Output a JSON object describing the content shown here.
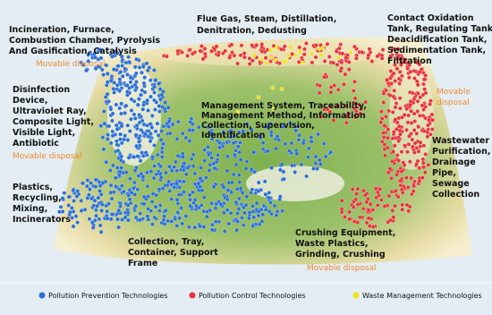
{
  "labels": [
    {
      "lines": [
        "Incineration, Furnace,",
        "Combustion Chamber, Pyrolysis",
        "And Gasification, Catalysis"
      ]
    },
    {
      "lines": [
        "Flue Gas, Steam, Distillation,",
        "Denitration, Dedusting"
      ]
    },
    {
      "lines": [
        "Contact Oxidation",
        "Tank, Regulating Tank,",
        "Deacidification Tank,",
        "Sedimentation Tank,",
        "Filtration"
      ]
    },
    {
      "lines": [
        "Disinfection",
        "Device,",
        "Ultraviolet Ray,",
        "Composite Light,",
        "Visible Light,",
        "Antibiotic"
      ]
    },
    {
      "lines": [
        "Management System, Traceability,",
        "Management Method, Information",
        "Collection, Supervision,",
        "Identification"
      ]
    },
    {
      "lines": [
        "Wastewater",
        "Purification,",
        "Drainage",
        "Pipe,",
        "Sewage",
        "Collection"
      ]
    },
    {
      "lines": [
        "Plastics,",
        "Recycling,",
        "Mixing,",
        "Incinerators"
      ]
    },
    {
      "lines": [
        "Collection, Tray,",
        "Container, Support",
        "Frame"
      ]
    },
    {
      "lines": [
        "Crushing Equipment,",
        "Waste Plastics,",
        "Grinding, Crushing"
      ]
    }
  ],
  "notes": [
    {
      "lines": [
        "Movable disposal"
      ]
    },
    {
      "lines": [
        "Movable",
        "disposal"
      ]
    },
    {
      "lines": [
        "Movable disposal"
      ]
    },
    {
      "lines": [
        "Movable disposal"
      ]
    }
  ],
  "legend": [
    {
      "name": "Pollution Prevention Technologies",
      "color": "#2a6fd6"
    },
    {
      "name": "Pollution Control Technologies",
      "color": "#e8323c"
    },
    {
      "name": "Waste Management Technologies",
      "color": "#f2e21a"
    }
  ]
}
